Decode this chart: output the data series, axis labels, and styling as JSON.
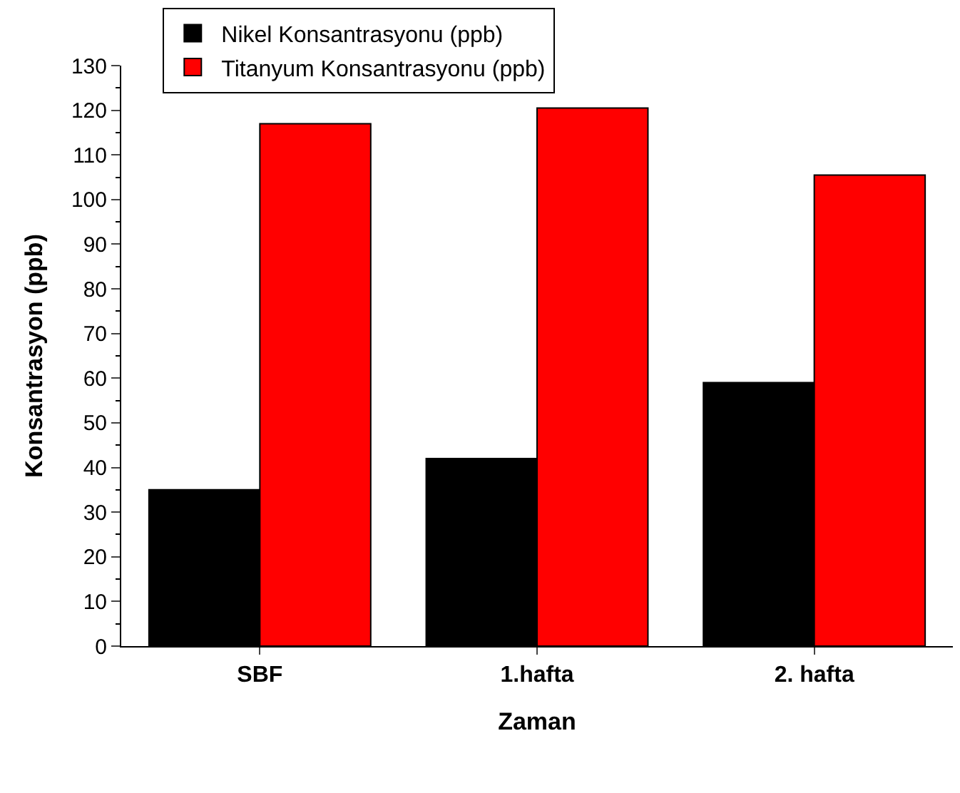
{
  "chart_data": {
    "type": "bar",
    "xlabel": "Zaman",
    "ylabel": "Konsantrasyon (ppb)",
    "categories": [
      "SBF",
      "1.hafta",
      "2. hafta"
    ],
    "series": [
      {
        "name": "Nikel Konsantrasyonu (ppb)",
        "color": "#000000",
        "values": [
          35,
          42,
          59
        ]
      },
      {
        "name": "Titanyum Konsantrasyonu (ppb)",
        "color": "#ff0000",
        "values": [
          117,
          120.5,
          105.5
        ]
      }
    ],
    "ylim": [
      0,
      130
    ],
    "yticks": [
      0,
      10,
      20,
      30,
      40,
      50,
      60,
      70,
      80,
      90,
      100,
      110,
      120,
      130
    ],
    "legend": "top left"
  }
}
